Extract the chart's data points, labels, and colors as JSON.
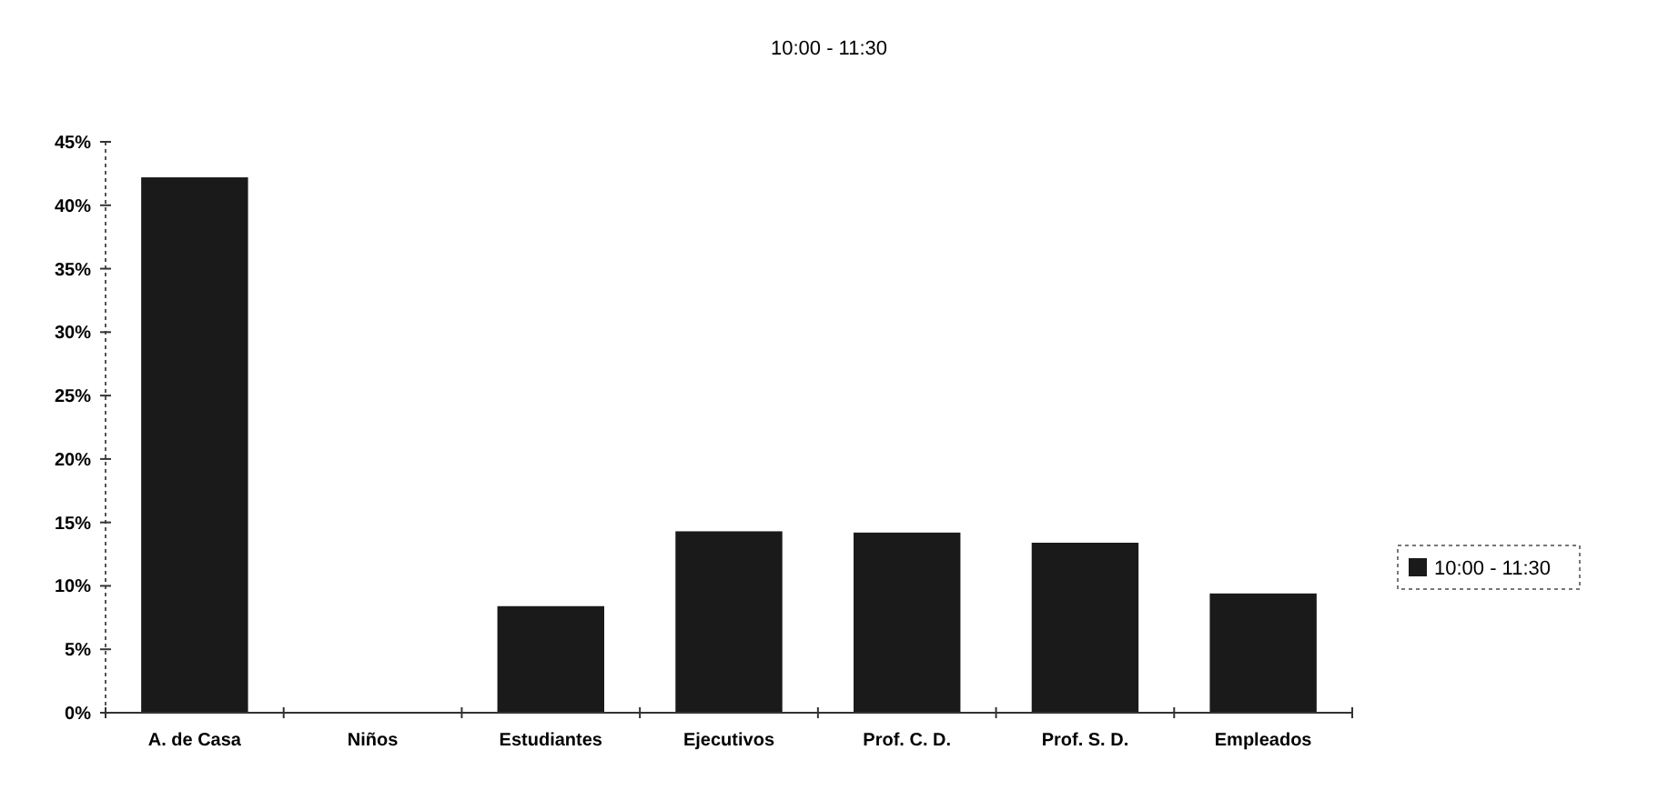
{
  "chart_data": {
    "type": "bar",
    "title": "10:00 - 11:30",
    "categories": [
      "A. de Casa",
      "Niños",
      "Estudiantes",
      "Ejecutivos",
      "Prof. C. D.",
      "Prof. S. D.",
      "Empleados"
    ],
    "series": [
      {
        "name": "10:00 - 11:30",
        "color": "#1a1a1a",
        "values": [
          42.2,
          0,
          8.4,
          14.3,
          14.2,
          13.4,
          9.4
        ]
      }
    ],
    "ylim": [
      0,
      45
    ],
    "yticks": [
      {
        "value": 0,
        "label": "0%"
      },
      {
        "value": 5,
        "label": "5%"
      },
      {
        "value": 10,
        "label": "10%"
      },
      {
        "value": 15,
        "label": "15%"
      },
      {
        "value": 20,
        "label": "20%"
      },
      {
        "value": 25,
        "label": "25%"
      },
      {
        "value": 30,
        "label": "30%"
      },
      {
        "value": 35,
        "label": "35%"
      },
      {
        "value": 40,
        "label": "40%"
      },
      {
        "value": 45,
        "label": "45%"
      }
    ],
    "grid": false,
    "legend": "right"
  }
}
